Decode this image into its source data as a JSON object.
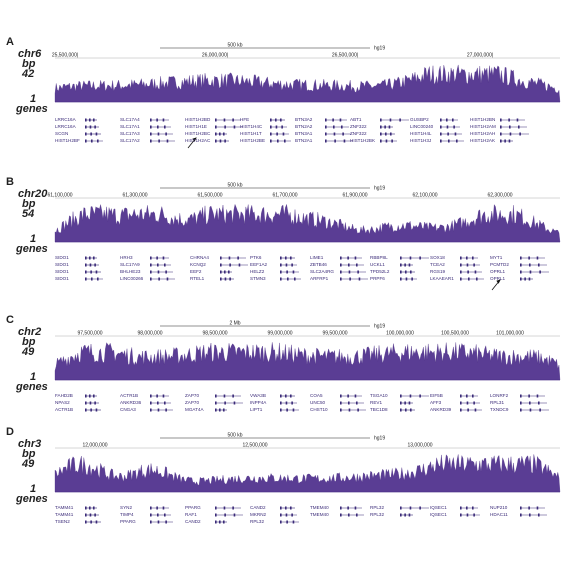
{
  "panels": [
    {
      "letter": "A",
      "chrom": "chr6",
      "unit": "bp",
      "max": 42,
      "min": 1,
      "track": "genes",
      "scale": "500 kb",
      "assembly": "hg19",
      "coordinates": [
        "25,500,000|",
        "26,000,000|",
        "26,500,000|",
        "27,000,000|"
      ],
      "gene_labels": [
        "LRRC16A",
        "SLC17A4",
        "HIST1H2BD",
        "HFE",
        "BTN3A2",
        "ABT1",
        "GUSBP2",
        "HIST1H2BN",
        "LRRC16A",
        "SLC17A1",
        "HIST1H1E",
        "HIST1H4C",
        "BTN2A2",
        "ZNF322",
        "LINC00240",
        "HIST1H2AM",
        "SCGN",
        "SLC17A3",
        "HIST1H2BC",
        "HIST1H1T",
        "BTN3A1",
        "ZNF322",
        "HIST1H4L",
        "HIST1H2AH",
        "HIST1H2BF",
        "SLC17A2",
        "HIST1H2AC",
        "HIST1H2BE",
        "BTN2A1",
        "HIST1H2BK",
        "HIST1H3J",
        "HIST1H2AK"
      ]
    },
    {
      "letter": "B",
      "chrom": "chr20",
      "unit": "bp",
      "max": 54,
      "min": 1,
      "track": "genes",
      "scale": "500 kb",
      "assembly": "hg19",
      "coordinates": [
        "61,100,000",
        "61,300,000",
        "61,500,000",
        "61,700,000",
        "61,900,000",
        "62,100,000",
        "62,300,000"
      ],
      "gene_labels": [
        "SIDO1",
        "HRH3",
        "CHRNA4",
        "PTK6",
        "LIME1",
        "RBBP8L",
        "SOX18",
        "MYT1",
        "SIDO1",
        "SLC17A9",
        "KCNQ2",
        "EEF1A2",
        "ZBTB46",
        "UCKL1",
        "TCEA2",
        "PCMTD2",
        "SIDO1",
        "BHLHE23",
        "EEF2",
        "HELZ2",
        "SLC2A4RG",
        "TPD52L2",
        "RGS19",
        "OPRL1",
        "SIDO1",
        "LINC00266",
        "RTEL1",
        "STMN3",
        "ARFRP1",
        "PRPF6",
        "LKAAEAR1",
        "OPRL1"
      ]
    },
    {
      "letter": "C",
      "chrom": "chr2",
      "unit": "bp",
      "max": 49,
      "min": 1,
      "track": "genes",
      "scale": "2 Mb",
      "assembly": "hg19",
      "coordinates": [
        "97,500,000",
        "98,000,000",
        "98,500,000",
        "99,000,000",
        "99,500,000",
        "100,000,000",
        "100,500,000",
        "101,000,000"
      ],
      "gene_labels": [
        "FAHD2B",
        "ACTR1B",
        "ZAP70",
        "VWA3B",
        "COA5",
        "TSGA10",
        "EIF5B",
        "LONRF2",
        "NPAS2",
        "ANKRD36",
        "ZAP70",
        "INPP4A",
        "UNC50",
        "REV1",
        "AFF3",
        "RPL31",
        "ACTR1B",
        "CNGA3",
        "MGAT4A",
        "LIPT1",
        "CHST10",
        "TBC1D8",
        "ANKRD39",
        "TXNDC9"
      ]
    },
    {
      "letter": "D",
      "chrom": "chr3",
      "unit": "bp",
      "max": 49,
      "min": 1,
      "track": "genes",
      "scale": "500 kb",
      "assembly": "hg19",
      "coordinates": [
        "12,000,000",
        "12,500,000",
        "13,000,000"
      ],
      "gene_labels": [
        "TAMM41",
        "SYN2",
        "PPARG",
        "CAND2",
        "TMEM40",
        "RPL32",
        "IQSEC1",
        "NUP210",
        "TAMM41",
        "TIMP4",
        "RAF1",
        "MKRN2",
        "TMEM40",
        "RPL32",
        "IQSEC1",
        "HDAC11",
        "TSEN2",
        "PPARG",
        "CAND2",
        "RPL32"
      ]
    }
  ]
}
